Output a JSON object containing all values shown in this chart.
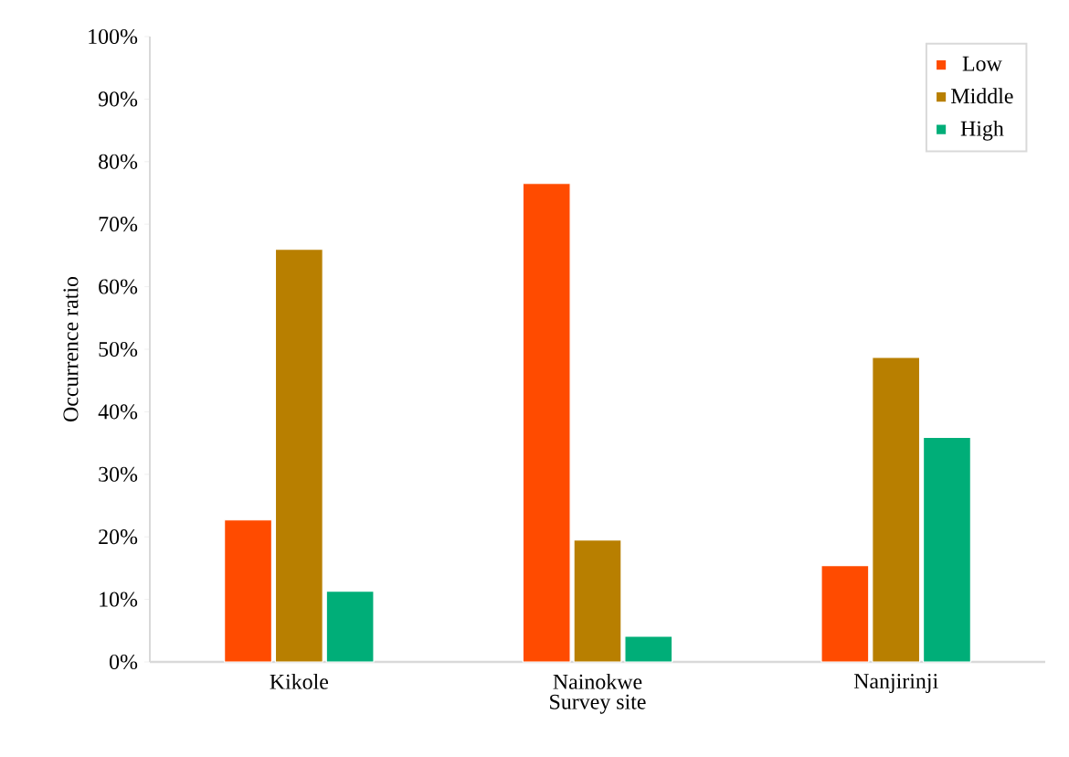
{
  "chart_data": {
    "type": "bar",
    "xlabel": "Survey site",
    "ylabel": "Occurrence ratio",
    "categories": [
      "Kikole",
      "Nainokwe",
      "Nanjirinji"
    ],
    "series": [
      {
        "name": "Low",
        "color": "#ff4b00",
        "values": [
          22.7,
          76.5,
          15.4
        ]
      },
      {
        "name": "Middle",
        "color": "#b87f00",
        "values": [
          66.0,
          19.5,
          48.7
        ]
      },
      {
        "name": "High",
        "color": "#00ae78",
        "values": [
          11.3,
          4.1,
          35.9
        ]
      }
    ],
    "ylim": [
      0,
      100
    ],
    "yticks": [
      {
        "value": 0,
        "label": "0%"
      },
      {
        "value": 10,
        "label": "10%"
      },
      {
        "value": 20,
        "label": "20%"
      },
      {
        "value": 30,
        "label": "30%"
      },
      {
        "value": 40,
        "label": "40%"
      },
      {
        "value": 50,
        "label": "50%"
      },
      {
        "value": 60,
        "label": "60%"
      },
      {
        "value": 70,
        "label": "70%"
      },
      {
        "value": 80,
        "label": "80%"
      },
      {
        "value": 90,
        "label": "90%"
      },
      {
        "value": 100,
        "label": "100%"
      }
    ],
    "legend": "top right"
  }
}
